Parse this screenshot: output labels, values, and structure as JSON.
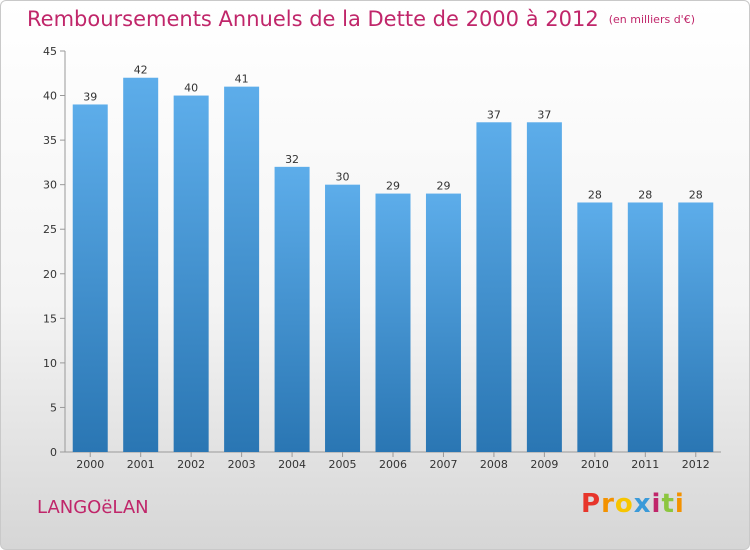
{
  "header": {
    "title": "Remboursements Annuels de la Dette de 2000 à 2012",
    "subtitle": "(en milliers d'€)"
  },
  "footer": {
    "commune": "LANGOëLAN",
    "logo_letters": [
      "P",
      "r",
      "o",
      "x",
      "i",
      "t",
      "i"
    ],
    "logo_colors": [
      "#e7352b",
      "#f39200",
      "#f7c500",
      "#3a9ad9",
      "#c0266a",
      "#8cc63f",
      "#f39200"
    ]
  },
  "colors": {
    "bar_top": "#5dadea",
    "bar_bottom": "#2a76b3",
    "title": "#c0266a"
  },
  "chart_data": {
    "type": "bar",
    "title": "Remboursements Annuels de la Dette de 2000 à 2012",
    "xlabel": "",
    "ylabel": "",
    "categories": [
      "2000",
      "2001",
      "2002",
      "2003",
      "2004",
      "2005",
      "2006",
      "2007",
      "2008",
      "2009",
      "2010",
      "2011",
      "2012"
    ],
    "values": [
      39,
      42,
      40,
      41,
      32,
      30,
      29,
      29,
      37,
      37,
      28,
      28,
      28
    ],
    "ylim": [
      0,
      45
    ],
    "yticks": [
      0,
      5,
      10,
      15,
      20,
      25,
      30,
      35,
      40,
      45
    ],
    "grid": false,
    "legend": "none"
  }
}
